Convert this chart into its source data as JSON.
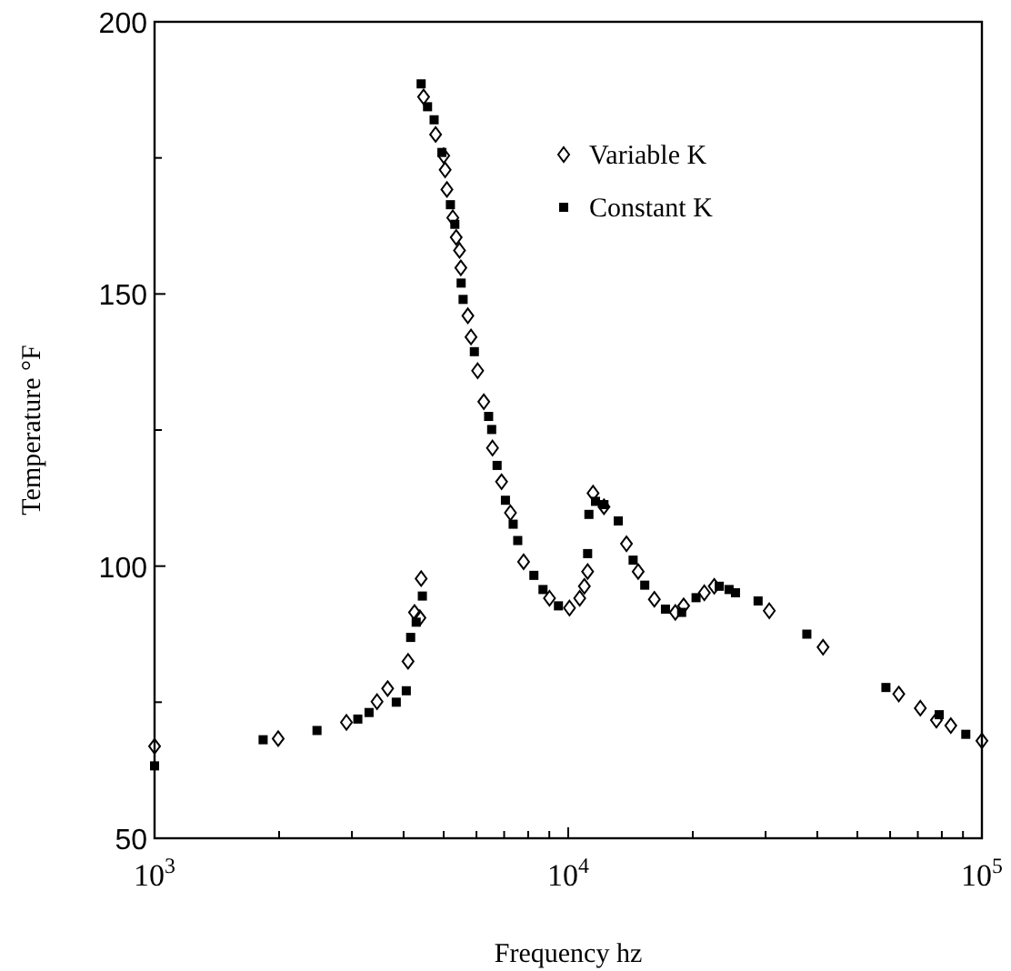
{
  "chart_data": {
    "type": "scatter",
    "xlabel": "Frequency hz",
    "ylabel": "Temperature °F",
    "log": "x",
    "xlim": [
      1000,
      100000
    ],
    "ylim": [
      50,
      200
    ],
    "xticks": [
      {
        "value": 1000,
        "label": "10$^{3}$"
      },
      {
        "value": 2000,
        "label": null
      },
      {
        "value": 3000,
        "label": null
      },
      {
        "value": 4000,
        "label": null
      },
      {
        "value": 5000,
        "label": null
      },
      {
        "value": 6000,
        "label": null
      },
      {
        "value": 7000,
        "label": null
      },
      {
        "value": 8000,
        "label": null
      },
      {
        "value": 9000,
        "label": null
      },
      {
        "value": 10000,
        "label": "10$^{4}$"
      },
      {
        "value": 20000,
        "label": null
      },
      {
        "value": 30000,
        "label": null
      },
      {
        "value": 40000,
        "label": null
      },
      {
        "value": 50000,
        "label": null
      },
      {
        "value": 60000,
        "label": null
      },
      {
        "value": 70000,
        "label": null
      },
      {
        "value": 80000,
        "label": null
      },
      {
        "value": 90000,
        "label": null
      },
      {
        "value": 100000,
        "label": "10$^{5}$"
      }
    ],
    "yticks": [
      50,
      {
        "value": 75,
        "label": null
      },
      100,
      {
        "value": 125,
        "label": null
      },
      150,
      {
        "value": 175,
        "label": null
      },
      200
    ],
    "grid": false,
    "legend": "top right",
    "series": [
      {
        "name": "Variable K",
        "color": "#000000",
        "marker": "diamond",
        "x": [
          1000,
          1990,
          2910,
          3450,
          3660,
          4100,
          4250,
          4380,
          4410,
          4470,
          4780,
          5000,
          5040,
          5090,
          5260,
          5360,
          5460,
          5500,
          5720,
          5820,
          6040,
          6250,
          6560,
          6900,
          7250,
          7800,
          9010,
          10070,
          10660,
          10940,
          11140,
          11480,
          12200,
          13830,
          14760,
          16150,
          18150,
          19010,
          21330,
          22540,
          30620,
          41300,
          62960,
          70970,
          77620,
          84100,
          100000
        ],
        "values": [
          66.9,
          68.3,
          71.3,
          75.1,
          77.5,
          82.5,
          91.5,
          90.5,
          97.7,
          186.2,
          179.3,
          175.4,
          172.8,
          169.2,
          164,
          160.4,
          158,
          154.8,
          146,
          142.1,
          135.9,
          130.2,
          121.7,
          115.5,
          109.8,
          100.8,
          94.1,
          92.3,
          94.1,
          96.3,
          99,
          113.4,
          110.9,
          104.1,
          99,
          93.9,
          91.5,
          92.7,
          95.1,
          96.3,
          91.8,
          85.1,
          76.5,
          73.9,
          71.7,
          70.7,
          67.9
        ]
      },
      {
        "name": "Constant K",
        "color": "#000000",
        "marker": "square",
        "x": [
          1000,
          1830,
          2470,
          3100,
          3300,
          3840,
          4060,
          4160,
          4290,
          4440,
          4410,
          4570,
          4740,
          4950,
          5190,
          5320,
          5510,
          5570,
          5930,
          6420,
          6530,
          6730,
          7050,
          7360,
          7550,
          8260,
          8690,
          9470,
          11140,
          11220,
          11640,
          12200,
          13210,
          14350,
          15310,
          17180,
          18800,
          20370,
          23180,
          24480,
          25370,
          28770,
          37740,
          58610,
          78850,
          91420
        ],
        "values": [
          63.3,
          68.1,
          69.8,
          71.9,
          73.1,
          75,
          77.1,
          86.9,
          89.7,
          94.5,
          188.6,
          184.4,
          182,
          176,
          166.4,
          162.8,
          152,
          149,
          139.4,
          127.5,
          125.1,
          118.5,
          112.1,
          107.7,
          104.7,
          98.3,
          95.7,
          92.7,
          102.3,
          109.5,
          111.9,
          111.3,
          108.3,
          101.1,
          96.5,
          92.1,
          91.5,
          94.2,
          96.3,
          95.7,
          95.1,
          93.6,
          87.5,
          77.7,
          72.7,
          69.1
        ]
      }
    ]
  }
}
